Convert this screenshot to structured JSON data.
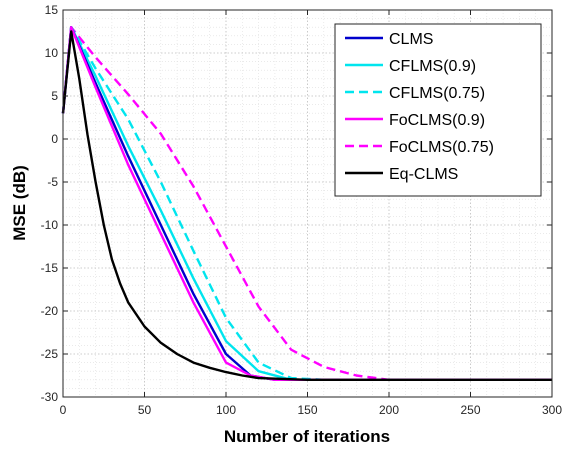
{
  "chart_data": {
    "type": "line",
    "title": "",
    "xlabel": "Number of iterations",
    "ylabel": "MSE (dB)",
    "xlim": [
      0,
      300
    ],
    "ylim": [
      -30,
      15
    ],
    "xticks": [
      0,
      50,
      100,
      150,
      200,
      250,
      300
    ],
    "yticks": [
      15,
      10,
      5,
      0,
      -5,
      -10,
      -15,
      -20,
      -25,
      -30
    ],
    "grid": "major and minor dotted",
    "legend_position": "top-right",
    "series": [
      {
        "name": "CLMS",
        "color": "#0000cc",
        "dash": "solid",
        "x": [
          0,
          5,
          20,
          40,
          60,
          80,
          100,
          115,
          130,
          150,
          200,
          250,
          300
        ],
        "y": [
          3,
          13,
          6.5,
          -2,
          -10,
          -18,
          -25,
          -27.5,
          -28,
          -28,
          -28,
          -28,
          -28
        ]
      },
      {
        "name": "CFLMS(0.9)",
        "color": "#00e5ee",
        "dash": "solid",
        "x": [
          0,
          5,
          20,
          40,
          60,
          80,
          100,
          120,
          140,
          160,
          200,
          250,
          300
        ],
        "y": [
          3,
          13,
          7.3,
          -0.8,
          -8.3,
          -16.2,
          -23.5,
          -27,
          -28,
          -28,
          -28,
          -28,
          -28
        ]
      },
      {
        "name": "CFLMS(0.75)",
        "color": "#00e5ee",
        "dash": "dashed",
        "x": [
          0,
          5,
          20,
          40,
          60,
          80,
          100,
          120,
          140,
          160,
          200,
          250,
          300
        ],
        "y": [
          3,
          13,
          8.2,
          2.3,
          -5,
          -13,
          -20.8,
          -26,
          -27.8,
          -28,
          -28,
          -28,
          -28
        ]
      },
      {
        "name": "FoCLMS(0.9)",
        "color": "#ff00ff",
        "dash": "solid",
        "x": [
          0,
          5,
          20,
          40,
          60,
          80,
          100,
          115,
          130,
          150,
          200,
          250,
          300
        ],
        "y": [
          3,
          13,
          6,
          -3,
          -11,
          -19,
          -26,
          -27.5,
          -28,
          -28,
          -28,
          -28,
          -28
        ]
      },
      {
        "name": "FoCLMS(0.75)",
        "color": "#ff00ff",
        "dash": "dashed",
        "x": [
          0,
          5,
          20,
          40,
          60,
          80,
          100,
          120,
          140,
          160,
          180,
          200,
          250,
          300
        ],
        "y": [
          3,
          13,
          9.5,
          5.2,
          0.6,
          -5.5,
          -12.5,
          -19.5,
          -24.5,
          -26.5,
          -27.5,
          -28,
          -28,
          -28
        ]
      },
      {
        "name": "Eq-CLMS",
        "color": "#000000",
        "dash": "solid",
        "x": [
          0,
          5,
          10,
          15,
          20,
          25,
          30,
          35,
          40,
          50,
          60,
          70,
          80,
          90,
          100,
          110,
          120,
          150,
          200,
          250,
          300
        ],
        "y": [
          3,
          12.5,
          7,
          0.5,
          -5,
          -10,
          -14,
          -16.8,
          -19,
          -21.8,
          -23.7,
          -25,
          -26,
          -26.6,
          -27.1,
          -27.5,
          -27.8,
          -28,
          -28,
          -28,
          -28
        ]
      }
    ]
  }
}
